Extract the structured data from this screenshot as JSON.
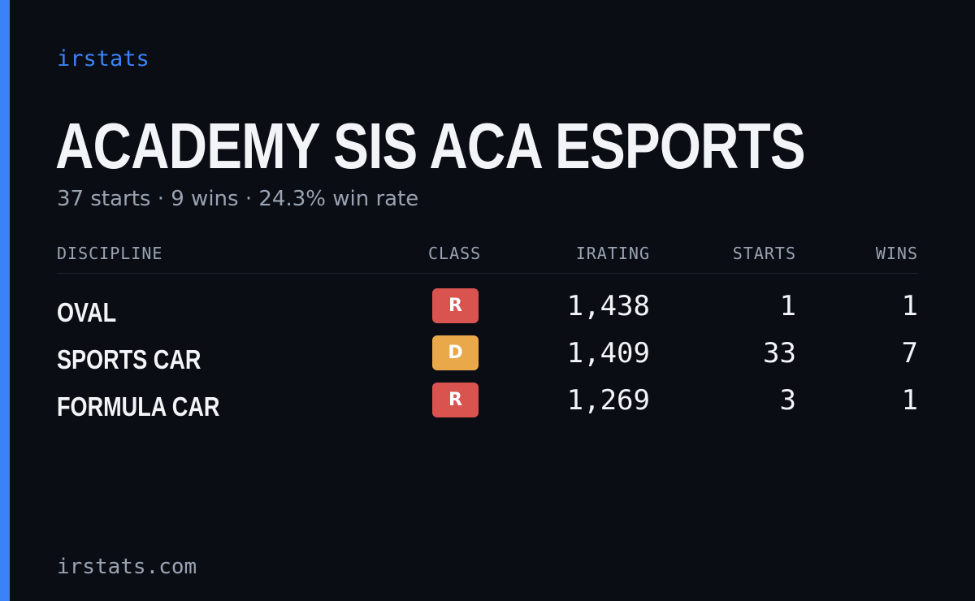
{
  "brand": "irstats",
  "team_name": "ACADEMY SIS ACA ESPORTS",
  "summary": "37 starts · 9 wins · 24.3% win rate",
  "table": {
    "headers": {
      "discipline": "DISCIPLINE",
      "class": "CLASS",
      "irating": "IRATING",
      "starts": "STARTS",
      "wins": "WINS"
    },
    "rows": [
      {
        "discipline": "OVAL",
        "class": "R",
        "class_color": "#d9534f",
        "irating": "1,438",
        "starts": "1",
        "wins": "1"
      },
      {
        "discipline": "SPORTS CAR",
        "class": "D",
        "class_color": "#e9a94a",
        "irating": "1,409",
        "starts": "33",
        "wins": "7"
      },
      {
        "discipline": "FORMULA CAR",
        "class": "R",
        "class_color": "#d9534f",
        "irating": "1,269",
        "starts": "3",
        "wins": "1"
      }
    ]
  },
  "footer": "irstats.com",
  "colors": {
    "background": "#0a0d14",
    "accent": "#3b82f6",
    "text": "#f2f4f8",
    "muted": "#9aa3b2"
  }
}
